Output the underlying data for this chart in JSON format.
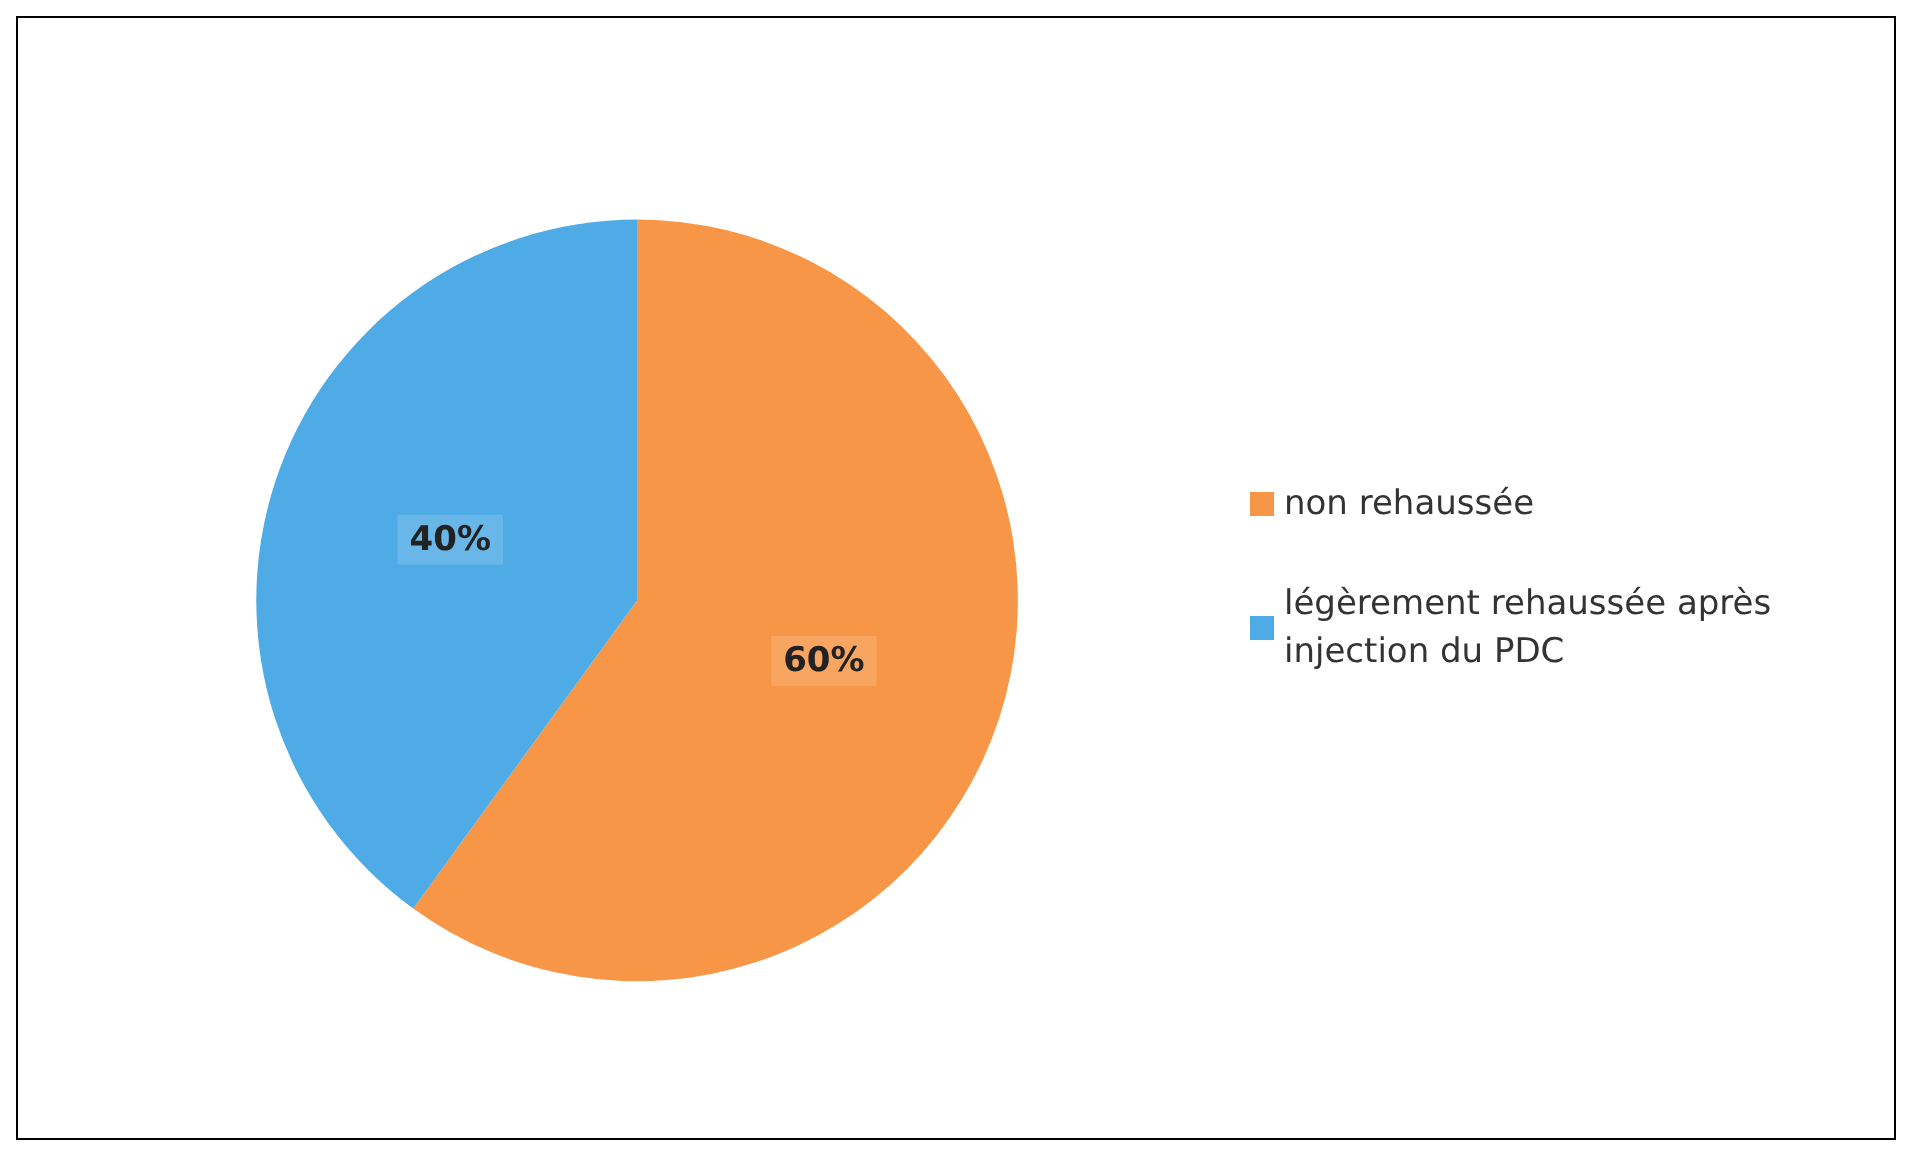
{
  "chart_data": {
    "type": "pie",
    "categories": [
      "non rehaussée",
      "légèrement rehaussée après injection du PDC"
    ],
    "values": [
      60,
      40
    ],
    "colors": [
      "#f79646",
      "#4fabe6"
    ],
    "value_labels": [
      "60%",
      "40%"
    ],
    "legend": "right"
  }
}
